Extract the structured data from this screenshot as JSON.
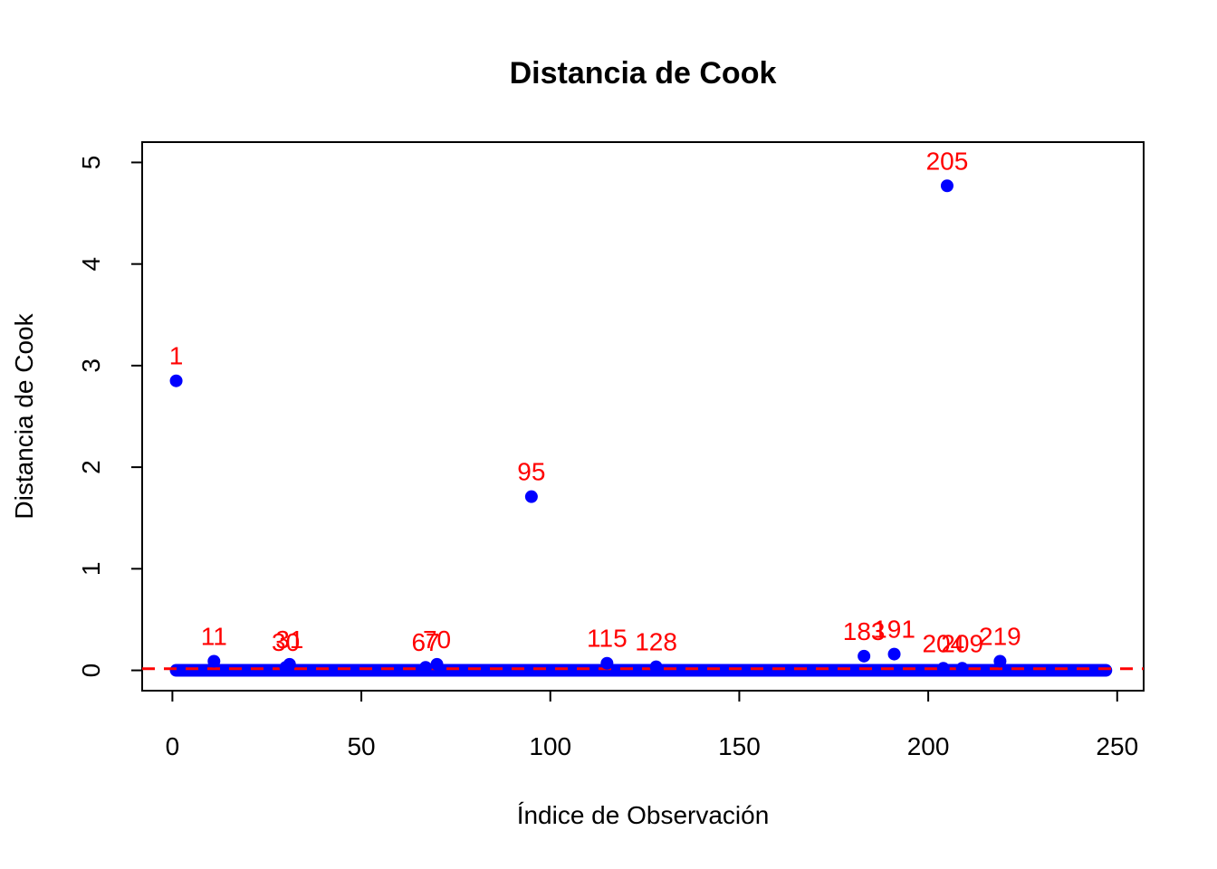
{
  "chart_data": {
    "type": "scatter",
    "title": "Distancia de Cook",
    "xlabel": "Índice de Observación",
    "ylabel": "Distancia de Cook",
    "xlim": [
      -8,
      257
    ],
    "ylim": [
      -0.2,
      5.2
    ],
    "xticks": [
      0,
      50,
      100,
      150,
      200,
      250
    ],
    "yticks": [
      0,
      1,
      2,
      3,
      4,
      5
    ],
    "grid": false,
    "legend": "none",
    "point_color": "#0000ff",
    "label_color": "#ff0000",
    "threshold": {
      "y": 0.0162,
      "color": "#ff0000",
      "style": "dashed"
    },
    "baseline": {
      "x_from": 1,
      "x_to": 247,
      "y": 0.0
    },
    "points": [
      {
        "x": 1,
        "y": 2.85,
        "label": "1"
      },
      {
        "x": 11,
        "y": 0.09,
        "label": "11"
      },
      {
        "x": 30,
        "y": 0.03,
        "label": "30"
      },
      {
        "x": 31,
        "y": 0.06,
        "label": "31"
      },
      {
        "x": 67,
        "y": 0.03,
        "label": "67"
      },
      {
        "x": 70,
        "y": 0.06,
        "label": "70"
      },
      {
        "x": 95,
        "y": 1.71,
        "label": "95"
      },
      {
        "x": 115,
        "y": 0.07,
        "label": "115"
      },
      {
        "x": 128,
        "y": 0.035,
        "label": "128"
      },
      {
        "x": 183,
        "y": 0.14,
        "label": "183"
      },
      {
        "x": 191,
        "y": 0.16,
        "label": "191"
      },
      {
        "x": 204,
        "y": 0.02,
        "label": "204"
      },
      {
        "x": 205,
        "y": 4.77,
        "label": "205"
      },
      {
        "x": 209,
        "y": 0.02,
        "label": "209"
      },
      {
        "x": 219,
        "y": 0.09,
        "label": "219"
      }
    ]
  }
}
